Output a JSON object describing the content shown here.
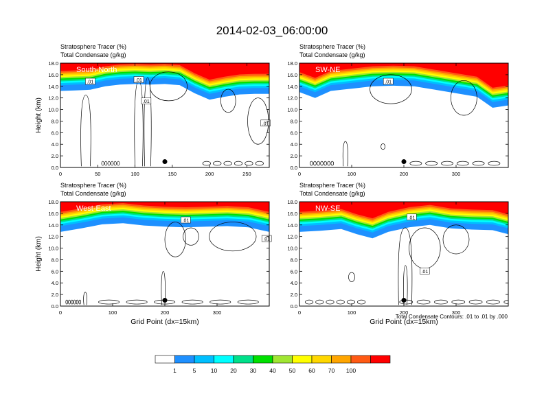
{
  "figure": {
    "title": "2014-02-03_06:00:00",
    "footnote": "Total Condensate Contours: .01 to .01 by .000"
  },
  "colorbar": {
    "colors": [
      "#ffffff",
      "#1e90ff",
      "#00bfff",
      "#00ffff",
      "#00e08a",
      "#00e000",
      "#a0e632",
      "#ffff00",
      "#ffd700",
      "#ffa500",
      "#ff5a14",
      "#ff0000"
    ],
    "tick_labels": [
      "1",
      "5",
      "10",
      "20",
      "30",
      "40",
      "50",
      "60",
      "70",
      "100"
    ]
  },
  "chart_data": [
    {
      "type": "heatmap",
      "panel_label": "South-North",
      "title_line1": "Stratosphere Tracer   (%)",
      "title_line2": "Total Condensate   (g/kg)",
      "ylabel": "Height (km)",
      "xlabel": "",
      "xlim": [
        0,
        280
      ],
      "ylim": [
        0,
        18
      ],
      "x_ticks": [
        "0",
        "50",
        "100",
        "150",
        "200",
        "250"
      ],
      "y_ticks": [
        "0.0",
        "2.0",
        "4.0",
        "6.0",
        "8.0",
        "10.0",
        "12.0",
        "14.0",
        "16.0",
        "18.0"
      ],
      "tracer_front": [
        [
          0,
          14.2
        ],
        [
          20,
          14.3
        ],
        [
          40,
          14.4
        ],
        [
          60,
          15.0
        ],
        [
          80,
          15.3
        ],
        [
          100,
          15.4
        ],
        [
          120,
          15.3
        ],
        [
          140,
          15.4
        ],
        [
          160,
          15.2
        ],
        [
          180,
          13.8
        ],
        [
          200,
          12.7
        ],
        [
          220,
          13.2
        ],
        [
          240,
          13.6
        ],
        [
          260,
          13.7
        ],
        [
          280,
          13.7
        ]
      ],
      "contour_labels": [
        {
          "x": 40,
          "y": 14.8,
          "text": ".01"
        },
        {
          "x": 105,
          "y": 15.1,
          "text": ".01"
        },
        {
          "x": 115,
          "y": 11.4,
          "text": ".01"
        },
        {
          "x": 275,
          "y": 7.6,
          "text": ".01"
        }
      ],
      "marker": {
        "x": 140,
        "y": 1.0
      }
    },
    {
      "type": "heatmap",
      "panel_label": "SW-NE",
      "title_line1": "Stratosphere Tracer   (%)",
      "title_line2": "Total Condensate   (g/kg)",
      "ylabel": "",
      "xlabel": "",
      "xlim": [
        0,
        400
      ],
      "ylim": [
        0,
        18
      ],
      "x_ticks": [
        "0",
        "100",
        "200",
        "300"
      ],
      "y_ticks": [
        "0.0",
        "2.0",
        "4.0",
        "6.0",
        "8.0",
        "10.0",
        "12.0",
        "14.0",
        "16.0",
        "18.0"
      ],
      "tracer_front": [
        [
          0,
          14.0
        ],
        [
          30,
          13.0
        ],
        [
          60,
          14.2
        ],
        [
          100,
          14.6
        ],
        [
          140,
          15.0
        ],
        [
          180,
          15.1
        ],
        [
          220,
          15.0
        ],
        [
          260,
          14.4
        ],
        [
          300,
          13.8
        ],
        [
          340,
          13.2
        ],
        [
          370,
          11.3
        ],
        [
          400,
          11.7
        ]
      ],
      "contour_labels": [
        {
          "x": 170,
          "y": 14.8,
          "text": ".01"
        }
      ],
      "marker": {
        "x": 200,
        "y": 1.0
      }
    },
    {
      "type": "heatmap",
      "panel_label": "West-East",
      "title_line1": "Stratosphere Tracer   (%)",
      "title_line2": "Total Condensate   (g/kg)",
      "ylabel": "Height (km)",
      "xlabel": "Grid Point (dx=15km)",
      "xlim": [
        0,
        400
      ],
      "ylim": [
        0,
        18
      ],
      "x_ticks": [
        "0",
        "100",
        "200",
        "300"
      ],
      "y_ticks": [
        "0.0",
        "2.0",
        "4.0",
        "6.0",
        "8.0",
        "10.0",
        "12.0",
        "14.0",
        "16.0",
        "18.0"
      ],
      "tracer_front": [
        [
          0,
          13.8
        ],
        [
          40,
          14.4
        ],
        [
          80,
          15.1
        ],
        [
          120,
          15.3
        ],
        [
          160,
          14.9
        ],
        [
          200,
          14.7
        ],
        [
          240,
          14.6
        ],
        [
          280,
          14.7
        ],
        [
          320,
          14.8
        ],
        [
          360,
          14.6
        ],
        [
          400,
          13.8
        ]
      ],
      "contour_labels": [
        {
          "x": 240,
          "y": 14.8,
          "text": ".01"
        },
        {
          "x": 395,
          "y": 11.6,
          "text": ".01"
        }
      ],
      "marker": {
        "x": 200,
        "y": 1.0
      }
    },
    {
      "type": "heatmap",
      "panel_label": "NW-SE",
      "title_line1": "Stratosphere Tracer   (%)",
      "title_line2": "Total Condensate   (g/kg)",
      "ylabel": "",
      "xlabel": "Grid Point (dx=15km)",
      "xlim": [
        0,
        400
      ],
      "ylim": [
        0,
        18
      ],
      "x_ticks": [
        "0",
        "100",
        "200",
        "300"
      ],
      "y_ticks": [
        "0.0",
        "2.0",
        "4.0",
        "6.0",
        "8.0",
        "10.0",
        "12.0",
        "14.0",
        "16.0",
        "18.0"
      ],
      "tracer_front": [
        [
          0,
          13.8
        ],
        [
          40,
          14.0
        ],
        [
          80,
          14.3
        ],
        [
          110,
          13.4
        ],
        [
          140,
          12.7
        ],
        [
          170,
          13.8
        ],
        [
          210,
          14.6
        ],
        [
          250,
          15.0
        ],
        [
          290,
          14.4
        ],
        [
          330,
          14.2
        ],
        [
          370,
          14.1
        ],
        [
          400,
          13.4
        ]
      ],
      "contour_labels": [
        {
          "x": 215,
          "y": 15.3,
          "text": ".01"
        },
        {
          "x": 240,
          "y": 6.0,
          "text": ".01"
        }
      ],
      "marker": {
        "x": 200,
        "y": 1.0
      }
    }
  ]
}
